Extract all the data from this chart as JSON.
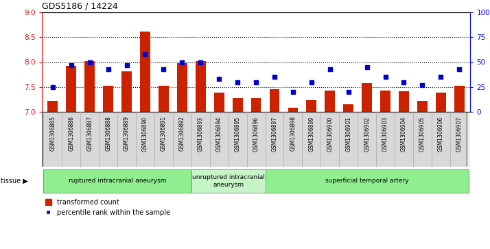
{
  "title": "GDS5186 / 14224",
  "samples": [
    "GSM1306885",
    "GSM1306886",
    "GSM1306887",
    "GSM1306888",
    "GSM1306889",
    "GSM1306890",
    "GSM1306891",
    "GSM1306892",
    "GSM1306893",
    "GSM1306894",
    "GSM1306895",
    "GSM1306896",
    "GSM1306897",
    "GSM1306898",
    "GSM1306899",
    "GSM1306900",
    "GSM1306901",
    "GSM1306902",
    "GSM1306903",
    "GSM1306904",
    "GSM1306905",
    "GSM1306906",
    "GSM1306907"
  ],
  "red_values": [
    7.22,
    7.93,
    8.02,
    7.52,
    7.82,
    8.62,
    7.52,
    7.98,
    8.02,
    7.38,
    7.27,
    7.27,
    7.46,
    7.08,
    7.23,
    7.43,
    7.15,
    7.58,
    7.43,
    7.42,
    7.22,
    7.38,
    7.52
  ],
  "blue_values": [
    25,
    47,
    50,
    43,
    47,
    58,
    43,
    50,
    50,
    33,
    30,
    30,
    35,
    20,
    30,
    43,
    20,
    45,
    35,
    30,
    27,
    35,
    43
  ],
  "tissue_groups": [
    {
      "label": "ruptured intracranial aneurysm",
      "start": 0,
      "end": 8,
      "color": "#90EE90"
    },
    {
      "label": "unruptured intracranial\naneurysm",
      "start": 8,
      "end": 12,
      "color": "#c8f5c8"
    },
    {
      "label": "superficial temporal artery",
      "start": 12,
      "end": 23,
      "color": "#90EE90"
    }
  ],
  "ylim_left": [
    7,
    9
  ],
  "ylim_right": [
    0,
    100
  ],
  "yticks_left": [
    7,
    7.5,
    8,
    8.5,
    9
  ],
  "yticks_right": [
    0,
    25,
    50,
    75,
    100
  ],
  "ytick_labels_right": [
    "0",
    "25",
    "50",
    "75",
    "100%"
  ],
  "bar_color": "#cc2200",
  "dot_color": "#0000cc",
  "bar_bottom": 7.0,
  "grid_lines": [
    7.5,
    8.0,
    8.5
  ],
  "label_bg_color": "#d8d8d8",
  "label_edge_color": "#aaaaaa"
}
